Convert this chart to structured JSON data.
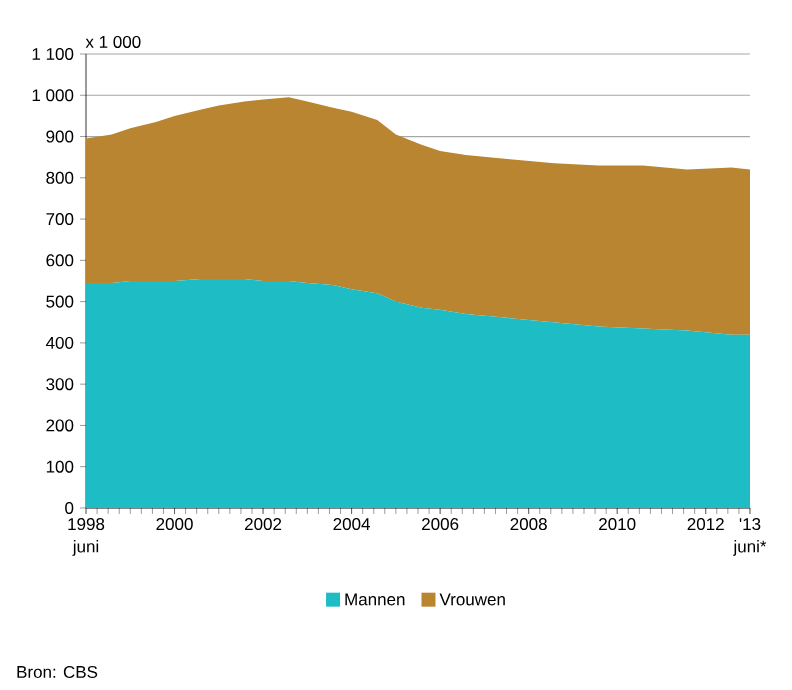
{
  "chart_data": {
    "type": "area",
    "stacked": true,
    "ylabel": "x 1 000",
    "x": [
      "1998-06",
      "1999-01",
      "1999-06",
      "2000-01",
      "2000-06",
      "2001-01",
      "2001-06",
      "2002-01",
      "2002-06",
      "2003-01",
      "2003-06",
      "2004-01",
      "2004-06",
      "2005-01",
      "2005-06",
      "2006-01",
      "2006-06",
      "2007-01",
      "2008-01",
      "2009-01",
      "2010-01",
      "2011-01",
      "2012-01",
      "2013-01",
      "2013-06"
    ],
    "series": [
      {
        "name": "Mannen",
        "color": "#1ebcc5",
        "values": [
          545,
          545,
          550,
          550,
          550,
          555,
          555,
          555,
          550,
          550,
          545,
          540,
          530,
          520,
          500,
          485,
          480,
          470,
          460,
          450,
          440,
          435,
          430,
          420,
          420
        ]
      },
      {
        "name": "Vrouwen",
        "color": "#b98530",
        "values": [
          350,
          360,
          370,
          385,
          400,
          410,
          420,
          430,
          440,
          445,
          440,
          430,
          430,
          420,
          405,
          395,
          385,
          385,
          385,
          385,
          390,
          395,
          390,
          405,
          400
        ]
      }
    ],
    "xlim": [
      "1998-06",
      "2013-06"
    ],
    "xticks": [
      {
        "value": "1998-06",
        "label": "1998"
      },
      {
        "value": "2000-06",
        "label": "2000"
      },
      {
        "value": "2002-06",
        "label": "2002"
      },
      {
        "value": "2004-06",
        "label": "2004"
      },
      {
        "value": "2006-06",
        "label": "2006"
      },
      {
        "value": "2008-06",
        "label": "2008"
      },
      {
        "value": "2010-06",
        "label": "2010"
      },
      {
        "value": "2012-06",
        "label": "2012"
      },
      {
        "value": "2013-06",
        "label": "'13"
      }
    ],
    "ylim": [
      0,
      1100
    ],
    "yticks": [
      0,
      100,
      200,
      300,
      400,
      500,
      600,
      700,
      800,
      900,
      {
        "value": 1000,
        "label": "1 000"
      },
      {
        "value": 1100,
        "label": "1 100"
      }
    ],
    "grid": "y",
    "legend": "bottom",
    "annotations": [
      "juni",
      "juni*",
      "Bron: CBS"
    ]
  }
}
